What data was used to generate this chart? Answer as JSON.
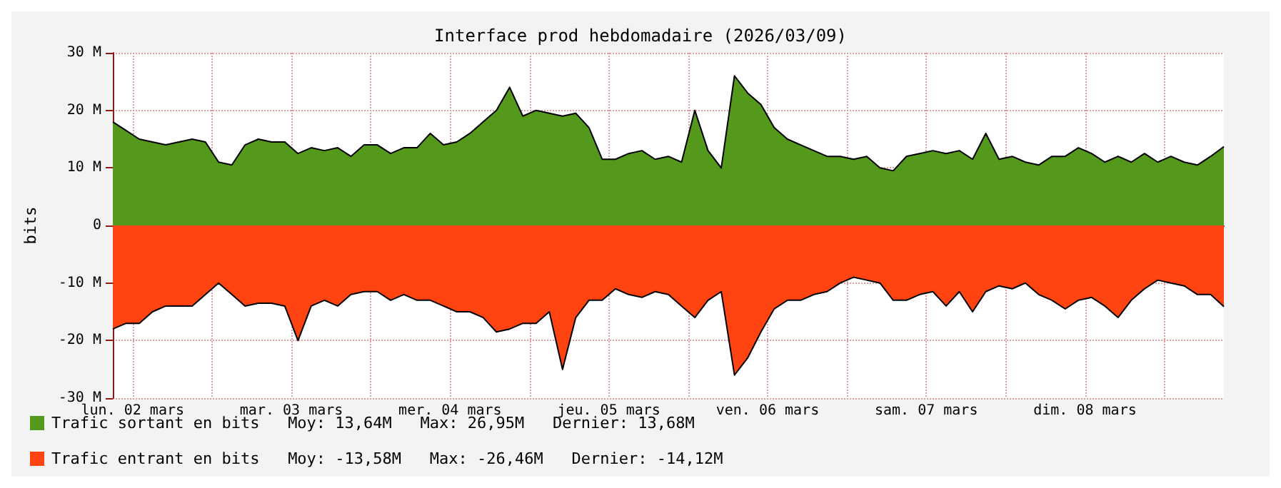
{
  "chart_data": {
    "type": "area",
    "title": "Interface prod hebdomadaire (2026/03/09)",
    "ylabel": "bits",
    "x": [
      "2026-03-02T09:00",
      "2026-03-02T11:00",
      "2026-03-02T13:00",
      "2026-03-02T15:00",
      "2026-03-02T17:00",
      "2026-03-02T19:00",
      "2026-03-02T21:00",
      "2026-03-02T23:00",
      "2026-03-03T01:00",
      "2026-03-03T03:00",
      "2026-03-03T05:00",
      "2026-03-03T07:00",
      "2026-03-03T09:00",
      "2026-03-03T11:00",
      "2026-03-03T13:00",
      "2026-03-03T15:00",
      "2026-03-03T17:00",
      "2026-03-03T19:00",
      "2026-03-03T21:00",
      "2026-03-03T23:00",
      "2026-03-04T01:00",
      "2026-03-04T03:00",
      "2026-03-04T05:00",
      "2026-03-04T07:00",
      "2026-03-04T09:00",
      "2026-03-04T11:00",
      "2026-03-04T13:00",
      "2026-03-04T15:00",
      "2026-03-04T17:00",
      "2026-03-04T19:00",
      "2026-03-04T21:00",
      "2026-03-04T23:00",
      "2026-03-05T01:00",
      "2026-03-05T03:00",
      "2026-03-05T05:00",
      "2026-03-05T07:00",
      "2026-03-05T09:00",
      "2026-03-05T11:00",
      "2026-03-05T13:00",
      "2026-03-05T15:00",
      "2026-03-05T17:00",
      "2026-03-05T19:00",
      "2026-03-05T21:00",
      "2026-03-05T23:00",
      "2026-03-06T01:00",
      "2026-03-06T03:00",
      "2026-03-06T05:00",
      "2026-03-06T07:00",
      "2026-03-06T09:00",
      "2026-03-06T11:00",
      "2026-03-06T13:00",
      "2026-03-06T15:00",
      "2026-03-06T17:00",
      "2026-03-06T19:00",
      "2026-03-06T21:00",
      "2026-03-06T23:00",
      "2026-03-07T01:00",
      "2026-03-07T03:00",
      "2026-03-07T05:00",
      "2026-03-07T07:00",
      "2026-03-07T09:00",
      "2026-03-07T11:00",
      "2026-03-07T13:00",
      "2026-03-07T15:00",
      "2026-03-07T17:00",
      "2026-03-07T19:00",
      "2026-03-07T21:00",
      "2026-03-07T23:00",
      "2026-03-08T01:00",
      "2026-03-08T03:00",
      "2026-03-08T05:00",
      "2026-03-08T07:00",
      "2026-03-08T09:00",
      "2026-03-08T11:00",
      "2026-03-08T13:00",
      "2026-03-08T15:00",
      "2026-03-08T17:00",
      "2026-03-08T19:00",
      "2026-03-08T21:00",
      "2026-03-08T23:00",
      "2026-03-09T01:00",
      "2026-03-09T03:00",
      "2026-03-09T05:00",
      "2026-03-09T07:00",
      "2026-03-09T09:00"
    ],
    "series": [
      {
        "name": "Trafic sortant en bits   Moy: 13,64M   Max: 26,95M   Dernier: 13,68M",
        "color": "#54991c",
        "values": [
          18,
          16.5,
          15,
          14.5,
          14,
          14.5,
          15,
          14.5,
          11,
          10.5,
          14,
          15,
          14.5,
          14.5,
          12.5,
          13.5,
          13,
          13.5,
          12,
          14,
          14,
          12.5,
          13.5,
          13.5,
          16,
          14,
          14.5,
          16,
          18,
          20,
          24,
          19,
          20,
          19.5,
          19,
          19.5,
          17,
          11.5,
          11.5,
          12.5,
          13,
          11.5,
          12,
          11,
          20,
          13,
          10,
          26,
          23,
          21,
          17,
          15,
          14,
          13,
          12,
          12,
          11.5,
          12,
          10,
          9.5,
          12,
          12.5,
          13,
          12.5,
          13,
          11.5,
          16,
          11.5,
          12,
          11,
          10.5,
          12,
          12,
          13.5,
          12.5,
          11,
          12,
          11,
          12.5,
          11,
          12,
          11,
          10.5,
          12,
          13.7
        ]
      },
      {
        "name": "Trafic entrant en bits   Moy: -13,58M   Max: -26,46M   Dernier: -14,12M",
        "color": "#ff4311",
        "values": [
          -18,
          -17,
          -17,
          -15,
          -14,
          -14,
          -14,
          -12,
          -10,
          -12,
          -14,
          -13.5,
          -13.5,
          -14,
          -20,
          -14,
          -13,
          -14,
          -12,
          -11.5,
          -11.5,
          -13,
          -12,
          -13,
          -13,
          -14,
          -15,
          -15,
          -16,
          -18.5,
          -18,
          -17,
          -17,
          -15,
          -25,
          -16,
          -13,
          -13,
          -11,
          -12,
          -12.5,
          -11.5,
          -12,
          -14,
          -16,
          -13,
          -11.5,
          -26,
          -23,
          -18.5,
          -14.5,
          -13,
          -13,
          -12,
          -11.5,
          -10,
          -9,
          -9.5,
          -10,
          -13,
          -13,
          -12,
          -11.5,
          -14,
          -11.5,
          -15,
          -11.5,
          -10.5,
          -11,
          -10,
          -12,
          -13,
          -14.5,
          -13,
          -12.5,
          -14,
          -16,
          -13,
          -11,
          -9.5,
          -10,
          -10.5,
          -12,
          -12,
          -14.1
        ]
      }
    ],
    "xlim": [
      "2026-03-02T09:00",
      "2026-03-09T09:00"
    ],
    "xticks": [
      {
        "value": "2026-03-02T12:00",
        "label": "lun. 02 mars"
      },
      {
        "value": "2026-03-03T00:00",
        "label": null
      },
      {
        "value": "2026-03-03T12:00",
        "label": "mar. 03 mars"
      },
      {
        "value": "2026-03-04T00:00",
        "label": null
      },
      {
        "value": "2026-03-04T12:00",
        "label": "mer. 04 mars"
      },
      {
        "value": "2026-03-05T00:00",
        "label": null
      },
      {
        "value": "2026-03-05T12:00",
        "label": "jeu. 05 mars"
      },
      {
        "value": "2026-03-06T00:00",
        "label": null
      },
      {
        "value": "2026-03-06T12:00",
        "label": "ven. 06 mars"
      },
      {
        "value": "2026-03-07T00:00",
        "label": null
      },
      {
        "value": "2026-03-07T12:00",
        "label": "sam. 07 mars"
      },
      {
        "value": "2026-03-08T00:00",
        "label": null
      },
      {
        "value": "2026-03-08T12:00",
        "label": "dim. 08 mars"
      },
      {
        "value": "2026-03-09T00:00",
        "label": null
      }
    ],
    "ylim": [
      -30,
      30
    ],
    "yticks": [
      {
        "value": -30,
        "label": "-30 M"
      },
      {
        "value": -20,
        "label": "-20 M"
      },
      {
        "value": -10,
        "label": "-10 M"
      },
      0,
      {
        "value": 10,
        "label": "10 M"
      },
      {
        "value": 20,
        "label": "20 M"
      },
      {
        "value": 30,
        "label": "30 M"
      }
    ],
    "grid": true,
    "legend": "bottom left",
    "marker": "none"
  }
}
